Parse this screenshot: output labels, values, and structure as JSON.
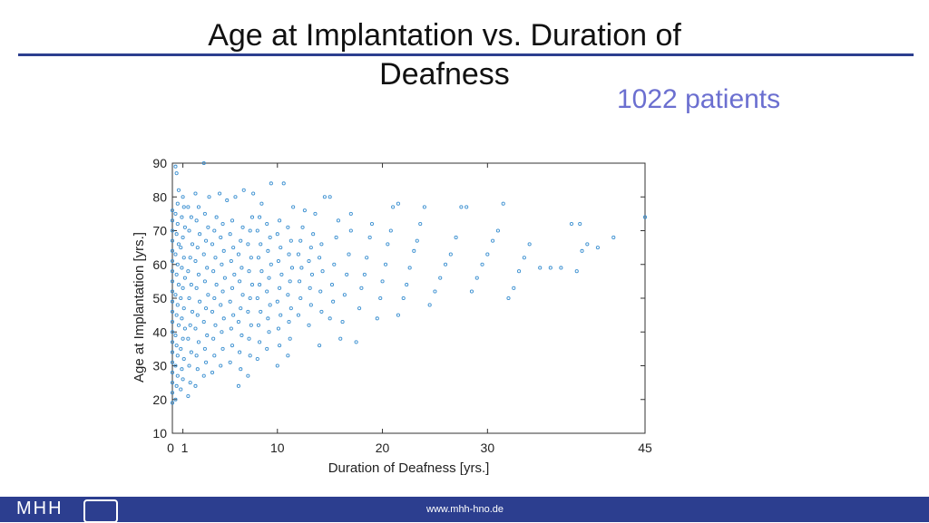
{
  "slide": {
    "title_line1": "Age at Implantation vs. Duration of",
    "title_line2": "Deafness",
    "patients_label": "1022 patients",
    "footer_url": "www.mhh-hno.de",
    "logo_text": "MHH"
  },
  "colors": {
    "accent": "#2c3e8f",
    "marker": "#3a8fd0",
    "patients": "#6b6fd0"
  },
  "chart_data": {
    "type": "scatter",
    "title": "",
    "xlabel": "Duration of Deafness [yrs.]",
    "ylabel": "Age at Implantation [yrs.]",
    "xlim": [
      0,
      45
    ],
    "ylim": [
      10,
      90
    ],
    "xticks": [
      0,
      1,
      10,
      20,
      30,
      45
    ],
    "yticks": [
      10,
      20,
      30,
      40,
      50,
      60,
      70,
      80,
      90
    ],
    "series": [
      {
        "name": "patients",
        "points": [
          [
            0,
            19
          ],
          [
            0,
            22
          ],
          [
            0,
            25
          ],
          [
            0,
            28
          ],
          [
            0,
            31
          ],
          [
            0,
            34
          ],
          [
            0,
            37
          ],
          [
            0,
            40
          ],
          [
            0,
            43
          ],
          [
            0,
            46
          ],
          [
            0,
            49
          ],
          [
            0,
            52
          ],
          [
            0,
            55
          ],
          [
            0,
            58
          ],
          [
            0,
            61
          ],
          [
            0,
            64
          ],
          [
            0,
            67
          ],
          [
            0,
            70
          ],
          [
            0,
            73
          ],
          [
            0,
            76
          ],
          [
            0.3,
            20
          ],
          [
            0.4,
            24
          ],
          [
            0.5,
            27
          ],
          [
            0.3,
            30
          ],
          [
            0.5,
            33
          ],
          [
            0.4,
            36
          ],
          [
            0.3,
            39
          ],
          [
            0.6,
            42
          ],
          [
            0.4,
            45
          ],
          [
            0.5,
            48
          ],
          [
            0.3,
            51
          ],
          [
            0.6,
            54
          ],
          [
            0.4,
            57
          ],
          [
            0.5,
            60
          ],
          [
            0.3,
            63
          ],
          [
            0.6,
            66
          ],
          [
            0.4,
            69
          ],
          [
            0.5,
            72
          ],
          [
            0.3,
            75
          ],
          [
            0.5,
            78
          ],
          [
            0.6,
            82
          ],
          [
            0.4,
            87
          ],
          [
            0.3,
            89
          ],
          [
            3,
            90
          ],
          [
            0.8,
            23
          ],
          [
            1,
            26
          ],
          [
            0.9,
            29
          ],
          [
            1.1,
            32
          ],
          [
            0.8,
            35
          ],
          [
            1,
            38
          ],
          [
            1.2,
            41
          ],
          [
            0.9,
            44
          ],
          [
            1.1,
            47
          ],
          [
            0.8,
            50
          ],
          [
            1,
            53
          ],
          [
            1.2,
            56
          ],
          [
            0.9,
            59
          ],
          [
            1.1,
            62
          ],
          [
            0.8,
            65
          ],
          [
            1,
            68
          ],
          [
            1.2,
            71
          ],
          [
            0.9,
            74
          ],
          [
            1.1,
            77
          ],
          [
            1,
            80
          ],
          [
            1.5,
            21
          ],
          [
            1.7,
            25
          ],
          [
            1.6,
            30
          ],
          [
            1.8,
            34
          ],
          [
            1.5,
            38
          ],
          [
            1.7,
            42
          ],
          [
            1.9,
            46
          ],
          [
            1.6,
            50
          ],
          [
            1.8,
            54
          ],
          [
            1.5,
            58
          ],
          [
            1.7,
            62
          ],
          [
            1.9,
            66
          ],
          [
            1.6,
            70
          ],
          [
            1.8,
            74
          ],
          [
            1.5,
            77
          ],
          [
            2.2,
            24
          ],
          [
            2.4,
            29
          ],
          [
            2.3,
            33
          ],
          [
            2.5,
            37
          ],
          [
            2.2,
            41
          ],
          [
            2.4,
            45
          ],
          [
            2.6,
            49
          ],
          [
            2.3,
            53
          ],
          [
            2.5,
            57
          ],
          [
            2.2,
            61
          ],
          [
            2.4,
            65
          ],
          [
            2.6,
            69
          ],
          [
            2.3,
            73
          ],
          [
            2.5,
            77
          ],
          [
            2.2,
            81
          ],
          [
            3,
            27
          ],
          [
            3.2,
            31
          ],
          [
            3.1,
            35
          ],
          [
            3.3,
            39
          ],
          [
            3,
            43
          ],
          [
            3.2,
            47
          ],
          [
            3.4,
            51
          ],
          [
            3.1,
            55
          ],
          [
            3.3,
            59
          ],
          [
            3,
            63
          ],
          [
            3.2,
            67
          ],
          [
            3.4,
            71
          ],
          [
            3.1,
            75
          ],
          [
            3.5,
            80
          ],
          [
            3.8,
            28
          ],
          [
            4,
            33
          ],
          [
            3.9,
            38
          ],
          [
            4.1,
            42
          ],
          [
            3.8,
            46
          ],
          [
            4,
            50
          ],
          [
            4.2,
            54
          ],
          [
            3.9,
            58
          ],
          [
            4.1,
            62
          ],
          [
            3.8,
            66
          ],
          [
            4,
            70
          ],
          [
            4.2,
            74
          ],
          [
            4.5,
            81
          ],
          [
            4.6,
            30
          ],
          [
            4.8,
            35
          ],
          [
            4.7,
            40
          ],
          [
            4.9,
            44
          ],
          [
            4.6,
            48
          ],
          [
            4.8,
            52
          ],
          [
            5,
            56
          ],
          [
            4.7,
            60
          ],
          [
            4.9,
            64
          ],
          [
            4.6,
            68
          ],
          [
            4.8,
            72
          ],
          [
            5.2,
            79
          ],
          [
            5.5,
            31
          ],
          [
            5.7,
            36
          ],
          [
            5.6,
            41
          ],
          [
            5.8,
            45
          ],
          [
            5.5,
            49
          ],
          [
            5.7,
            53
          ],
          [
            5.9,
            57
          ],
          [
            5.6,
            61
          ],
          [
            5.8,
            65
          ],
          [
            5.5,
            69
          ],
          [
            5.7,
            73
          ],
          [
            6,
            80
          ],
          [
            6.3,
            24
          ],
          [
            6.5,
            29
          ],
          [
            6.4,
            34
          ],
          [
            6.6,
            39
          ],
          [
            6.3,
            43
          ],
          [
            6.5,
            47
          ],
          [
            6.7,
            51
          ],
          [
            6.4,
            55
          ],
          [
            6.6,
            59
          ],
          [
            6.3,
            63
          ],
          [
            6.5,
            67
          ],
          [
            6.7,
            71
          ],
          [
            6.8,
            82
          ],
          [
            7.2,
            27
          ],
          [
            7.4,
            33
          ],
          [
            7.3,
            38
          ],
          [
            7.5,
            42
          ],
          [
            7.2,
            46
          ],
          [
            7.4,
            50
          ],
          [
            7.6,
            54
          ],
          [
            7.3,
            58
          ],
          [
            7.5,
            62
          ],
          [
            7.2,
            66
          ],
          [
            7.4,
            70
          ],
          [
            7.6,
            74
          ],
          [
            7.7,
            81
          ],
          [
            8.1,
            32
          ],
          [
            8.3,
            37
          ],
          [
            8.2,
            42
          ],
          [
            8.4,
            46
          ],
          [
            8.1,
            50
          ],
          [
            8.3,
            54
          ],
          [
            8.5,
            58
          ],
          [
            8.2,
            62
          ],
          [
            8.4,
            66
          ],
          [
            8.1,
            70
          ],
          [
            8.3,
            74
          ],
          [
            8.5,
            78
          ],
          [
            9,
            35
          ],
          [
            9.2,
            40
          ],
          [
            9.1,
            44
          ],
          [
            9.3,
            48
          ],
          [
            9,
            52
          ],
          [
            9.2,
            56
          ],
          [
            9.4,
            60
          ],
          [
            9.1,
            64
          ],
          [
            9.3,
            68
          ],
          [
            9,
            72
          ],
          [
            9.4,
            84
          ],
          [
            10,
            30
          ],
          [
            10.2,
            36
          ],
          [
            10.1,
            41
          ],
          [
            10.3,
            45
          ],
          [
            10,
            49
          ],
          [
            10.2,
            53
          ],
          [
            10.4,
            57
          ],
          [
            10.1,
            61
          ],
          [
            10.3,
            65
          ],
          [
            10,
            69
          ],
          [
            10.2,
            73
          ],
          [
            10.6,
            84
          ],
          [
            11,
            33
          ],
          [
            11.2,
            38
          ],
          [
            11.1,
            43
          ],
          [
            11.3,
            47
          ],
          [
            11,
            51
          ],
          [
            11.2,
            55
          ],
          [
            11.4,
            59
          ],
          [
            11.1,
            63
          ],
          [
            11.3,
            67
          ],
          [
            11,
            71
          ],
          [
            11.5,
            77
          ],
          [
            12,
            45
          ],
          [
            12.2,
            50
          ],
          [
            12.1,
            55
          ],
          [
            12.3,
            59
          ],
          [
            12,
            63
          ],
          [
            12.2,
            67
          ],
          [
            12.4,
            71
          ],
          [
            12.6,
            76
          ],
          [
            13,
            42
          ],
          [
            13.2,
            48
          ],
          [
            13.1,
            53
          ],
          [
            13.3,
            57
          ],
          [
            13,
            61
          ],
          [
            13.2,
            65
          ],
          [
            13.4,
            69
          ],
          [
            13.6,
            75
          ],
          [
            14,
            36
          ],
          [
            14.2,
            46
          ],
          [
            14.1,
            52
          ],
          [
            14.3,
            58
          ],
          [
            14,
            62
          ],
          [
            14.2,
            66
          ],
          [
            14.5,
            80
          ],
          [
            15,
            80
          ],
          [
            15,
            44
          ],
          [
            15.3,
            49
          ],
          [
            15.2,
            54
          ],
          [
            15.4,
            60
          ],
          [
            15.6,
            68
          ],
          [
            15.8,
            73
          ],
          [
            16,
            38
          ],
          [
            16.2,
            43
          ],
          [
            16.4,
            51
          ],
          [
            16.6,
            57
          ],
          [
            16.8,
            63
          ],
          [
            17,
            70
          ],
          [
            17,
            75
          ],
          [
            17.5,
            37
          ],
          [
            17.8,
            47
          ],
          [
            18,
            53
          ],
          [
            18.3,
            57
          ],
          [
            18.5,
            62
          ],
          [
            18.8,
            68
          ],
          [
            19,
            72
          ],
          [
            19.5,
            44
          ],
          [
            19.8,
            50
          ],
          [
            20,
            55
          ],
          [
            20.3,
            60
          ],
          [
            20.5,
            66
          ],
          [
            20.8,
            70
          ],
          [
            21,
            77
          ],
          [
            21.5,
            78
          ],
          [
            21.5,
            45
          ],
          [
            22,
            50
          ],
          [
            22.3,
            54
          ],
          [
            22.6,
            59
          ],
          [
            23,
            64
          ],
          [
            23.3,
            67
          ],
          [
            23.6,
            72
          ],
          [
            24,
            77
          ],
          [
            24.5,
            48
          ],
          [
            25,
            52
          ],
          [
            25.5,
            56
          ],
          [
            26,
            60
          ],
          [
            26.5,
            63
          ],
          [
            27,
            68
          ],
          [
            27.5,
            77
          ],
          [
            28,
            77
          ],
          [
            28.5,
            52
          ],
          [
            29,
            56
          ],
          [
            29.5,
            60
          ],
          [
            30,
            63
          ],
          [
            30.5,
            67
          ],
          [
            31,
            70
          ],
          [
            31.5,
            78
          ],
          [
            32,
            50
          ],
          [
            32.5,
            53
          ],
          [
            33,
            58
          ],
          [
            33.5,
            62
          ],
          [
            34,
            66
          ],
          [
            35,
            59
          ],
          [
            36,
            59
          ],
          [
            37,
            59
          ],
          [
            38,
            72
          ],
          [
            38.5,
            58
          ],
          [
            38.8,
            72
          ],
          [
            39,
            64
          ],
          [
            39.5,
            66
          ],
          [
            40.5,
            65
          ],
          [
            42,
            68
          ],
          [
            45,
            74
          ]
        ]
      }
    ]
  }
}
